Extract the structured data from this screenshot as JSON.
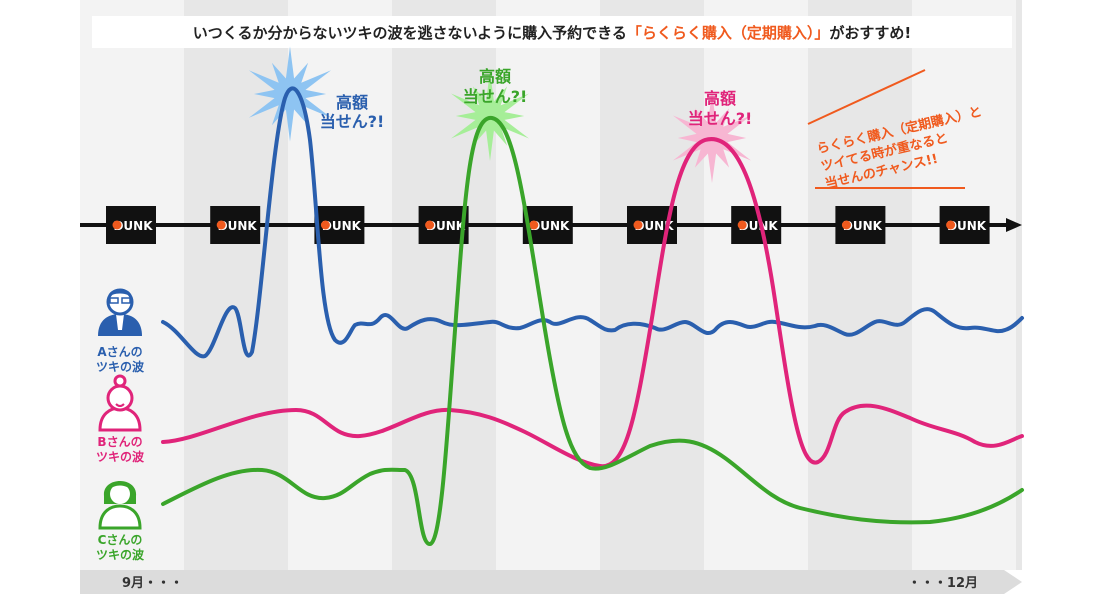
{
  "banner": {
    "text_before": "いつくるか分からないツキの波を逃さないように購入予約できる",
    "text_accent": "「らくらく購入（定期購入）」",
    "text_after": "がおすすめ!"
  },
  "bursts": [
    {
      "line1": "高額",
      "line2": "当せん?!",
      "color": "#2a5fae"
    },
    {
      "line1": "高額",
      "line2": "当せん?!",
      "color": "#3aa52a"
    },
    {
      "line1": "高額",
      "line2": "当せん?!",
      "color": "#e0247a"
    }
  ],
  "note": {
    "line1": "らくらく購入（定期購入）と",
    "line2": "ツイてる時が重なると",
    "line3": "当せんのチャンス!!"
  },
  "timeline": {
    "release_label": "DUNK",
    "release_count": 9
  },
  "people": [
    {
      "line1": "Aさんの",
      "line2": "ツキの波",
      "color": "#2a5fae",
      "icon": "man-with-glasses-icon"
    },
    {
      "line1": "Bさんの",
      "line2": "ツキの波",
      "color": "#e0247a",
      "icon": "woman-with-bun-icon"
    },
    {
      "line1": "Cさんの",
      "line2": "ツキの波",
      "color": "#3aa52a",
      "icon": "woman-short-hair-icon"
    }
  ],
  "axis": {
    "start_label": "9月・・・",
    "end_label": "・・・12月"
  },
  "colors": {
    "a_wave": "#2a5fae",
    "b_wave": "#e0247a",
    "c_wave": "#3aa52a",
    "accent": "#f05a1e",
    "dunk_box": "#111111"
  }
}
